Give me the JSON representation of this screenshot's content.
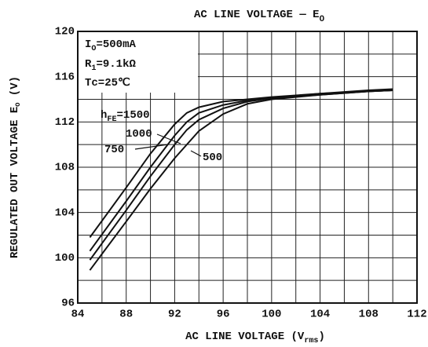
{
  "chart_data": {
    "type": "line",
    "title": [
      {
        "t": "AC LINE VOLTAGE — E"
      },
      {
        "sub": "O"
      }
    ],
    "x_label": [
      {
        "t": "AC LINE VOLTAGE (V"
      },
      {
        "sub": "rms"
      },
      {
        "t": ")"
      }
    ],
    "y_label": [
      {
        "t": "REGULATED OUT VOLTAGE E"
      },
      {
        "sub": "O"
      },
      {
        "t": " (V)"
      }
    ],
    "annotations": [
      [
        {
          "t": "I"
        },
        {
          "sub": "O"
        },
        {
          "t": "=500mA"
        }
      ],
      [
        {
          "t": "R"
        },
        {
          "sub": "1"
        },
        {
          "t": "=9.1kΩ"
        }
      ],
      [
        {
          "t": "Tc=25℃"
        }
      ]
    ],
    "series": [
      {
        "name": [
          {
            "t": "h"
          },
          {
            "sub": "FE"
          },
          {
            "t": "=1500"
          }
        ],
        "color": "#111",
        "x": [
          85,
          88,
          90,
          92,
          93,
          94,
          96,
          98,
          100,
          104,
          108,
          110
        ],
        "values": [
          101.8,
          106.2,
          109.2,
          111.8,
          112.8,
          113.3,
          113.8,
          114.0,
          114.2,
          114.5,
          114.8,
          114.9
        ]
      },
      {
        "name": [
          {
            "t": "1000"
          }
        ],
        "color": "#111",
        "x": [
          85,
          88,
          90,
          92,
          93,
          94,
          96,
          98,
          100,
          104,
          108,
          110
        ],
        "values": [
          100.6,
          105.0,
          108.0,
          110.8,
          112.0,
          112.8,
          113.5,
          113.9,
          114.1,
          114.5,
          114.7,
          114.8
        ]
      },
      {
        "name": [
          {
            "t": "750"
          }
        ],
        "color": "#111",
        "x": [
          85,
          88,
          90,
          92,
          93,
          94,
          96,
          98,
          100,
          104,
          108,
          110
        ],
        "values": [
          99.8,
          104.2,
          107.2,
          110.0,
          111.3,
          112.2,
          113.2,
          113.8,
          114.1,
          114.4,
          114.7,
          114.8
        ]
      },
      {
        "name": [
          {
            "t": "500"
          }
        ],
        "color": "#111",
        "x": [
          85,
          88,
          90,
          92,
          94,
          96,
          98,
          100,
          104,
          108,
          110
        ],
        "values": [
          98.9,
          103.2,
          106.1,
          108.8,
          111.2,
          112.7,
          113.6,
          114.0,
          114.4,
          114.7,
          114.8
        ]
      }
    ],
    "xlim": [
      84,
      112
    ],
    "xticks": [
      84,
      88,
      92,
      96,
      100,
      104,
      108,
      112
    ],
    "ylim": [
      96,
      120
    ],
    "yticks": [
      96,
      100,
      104,
      108,
      112,
      116,
      120
    ],
    "grid": true
  }
}
